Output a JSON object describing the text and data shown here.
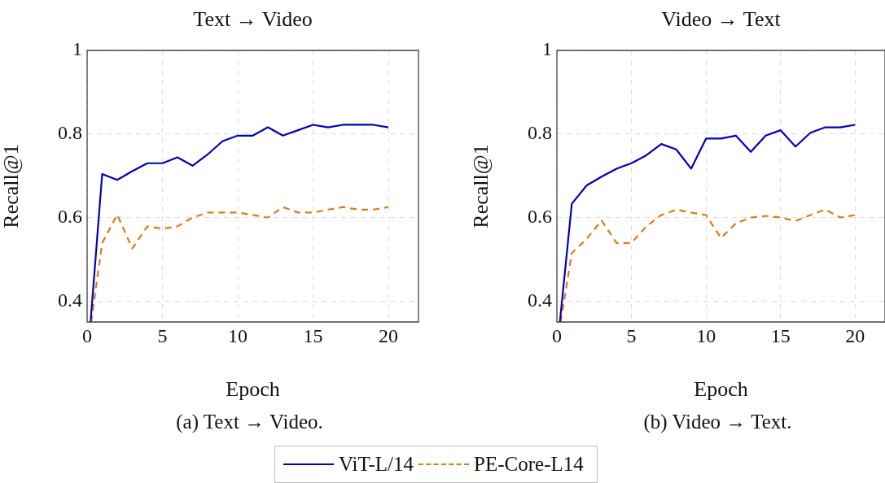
{
  "chart_data": [
    {
      "type": "line",
      "title": "Text → Video",
      "xlabel": "Epoch",
      "ylabel": "Recall@1",
      "annotations": [
        "(a) Text → Video."
      ],
      "series": [
        {
          "name": "ViT-L/14",
          "color": "#0000bf",
          "line_style": "solid",
          "x": [
            0.23,
            1,
            2,
            3,
            4,
            5,
            6,
            7,
            8,
            9,
            10,
            11,
            12,
            13,
            14,
            15,
            16,
            17,
            18,
            19,
            20
          ],
          "values": [
            0.35,
            0.704,
            0.69,
            0.711,
            0.73,
            0.73,
            0.744,
            0.724,
            0.751,
            0.783,
            0.796,
            0.796,
            0.816,
            0.796,
            0.809,
            0.822,
            0.816,
            0.822,
            0.822,
            0.822,
            0.816
          ]
        },
        {
          "name": "PE-Core-L14",
          "color": "#e07b10",
          "line_style": "dashed",
          "x": [
            0.27,
            1,
            2,
            3,
            4,
            5,
            6,
            7,
            8,
            9,
            10,
            11,
            12,
            13,
            14,
            15,
            16,
            17,
            18,
            19,
            20
          ],
          "values": [
            0.35,
            0.539,
            0.607,
            0.526,
            0.579,
            0.573,
            0.579,
            0.6,
            0.612,
            0.612,
            0.612,
            0.606,
            0.6,
            0.625,
            0.612,
            0.612,
            0.619,
            0.625,
            0.619,
            0.619,
            0.625
          ]
        }
      ],
      "xlim": [
        0,
        22
      ],
      "xticks": [
        0,
        5,
        10,
        15,
        20
      ],
      "ylim": [
        0.35,
        1
      ],
      "yticks": [
        0.4,
        0.6,
        0.8,
        1
      ],
      "grid": true,
      "legend": "bottom",
      "marker": "none"
    },
    {
      "type": "line",
      "title": "Video → Text",
      "xlabel": "Epoch",
      "ylabel": "Recall@1",
      "annotations": [
        "(b) Video → Text."
      ],
      "series": [
        {
          "color": "#0000bf",
          "line_style": "solid",
          "x": [
            0.2,
            1,
            2,
            3,
            4,
            5,
            6,
            7,
            8,
            9,
            10,
            11,
            12,
            13,
            14,
            15,
            16,
            17,
            18,
            19,
            20
          ],
          "values": [
            0.35,
            0.633,
            0.677,
            0.698,
            0.717,
            0.73,
            0.749,
            0.776,
            0.763,
            0.717,
            0.789,
            0.789,
            0.796,
            0.757,
            0.796,
            0.809,
            0.77,
            0.803,
            0.816,
            0.816,
            0.822
          ]
        },
        {
          "color": "#e07b10",
          "line_style": "dashed",
          "x": [
            0.25,
            1,
            2,
            3,
            4,
            5,
            6,
            7,
            8,
            9,
            10,
            11,
            12,
            13,
            14,
            15,
            16,
            17,
            18,
            19,
            20
          ],
          "values": [
            0.35,
            0.515,
            0.549,
            0.593,
            0.539,
            0.539,
            0.579,
            0.606,
            0.619,
            0.612,
            0.606,
            0.551,
            0.586,
            0.6,
            0.604,
            0.6,
            0.592,
            0.606,
            0.619,
            0.6,
            0.606
          ]
        }
      ],
      "xlim": [
        0,
        22
      ],
      "xticks": [
        0,
        5,
        10,
        15,
        20
      ],
      "ylim": [
        0.35,
        1
      ],
      "yticks": [
        0.4,
        0.6,
        0.8,
        1
      ],
      "grid": true,
      "marker": "none"
    }
  ]
}
